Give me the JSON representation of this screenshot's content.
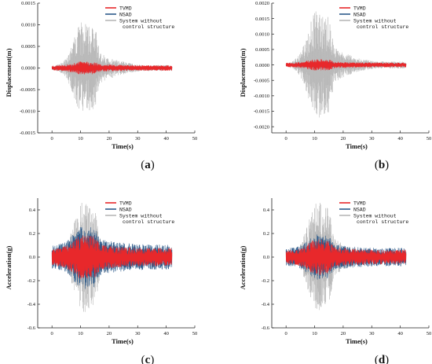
{
  "chart_data": [
    {
      "type": "line",
      "caption_letter": "a",
      "xlabel": "Time(s)",
      "ylabel": "Displacement(m)",
      "xlim": [
        -5,
        50
      ],
      "ylim": [
        -0.0015,
        0.0015
      ],
      "x_ticks": [
        0,
        10,
        20,
        30,
        40,
        50
      ],
      "y_ticks": [
        0.0015,
        0.001,
        0.0005,
        0.0,
        -0.0005,
        -0.001,
        -0.0015
      ],
      "y_tick_labels": [
        "0.0015",
        "0.0010",
        "0.0005",
        "0.0000",
        "-0.0005",
        "-0.0010",
        "-0.0015"
      ],
      "duration_s": 42,
      "series": [
        {
          "name": "TVMD",
          "color": "#e8282b",
          "peak_abs": 0.00016
        },
        {
          "name": "NSAD",
          "color": "#2c5a8a",
          "peak_abs": 0.0001
        },
        {
          "name": "System without control structure",
          "color": "#b8b8b8",
          "peak_abs": 0.00115
        }
      ],
      "legend_position": "top-right"
    },
    {
      "type": "line",
      "caption_letter": "b",
      "xlabel": "Time(s)",
      "ylabel": "Displacement(m)",
      "xlim": [
        -5,
        50
      ],
      "ylim": [
        -0.0022,
        0.002
      ],
      "x_ticks": [
        0,
        10,
        20,
        30,
        40,
        50
      ],
      "y_ticks": [
        0.002,
        0.0015,
        0.001,
        0.0005,
        0.0,
        -0.0005,
        -0.001,
        -0.0015,
        -0.002
      ],
      "y_tick_labels": [
        "0.0020",
        "0.0015",
        "0.0010",
        "0.0005",
        "0.0000",
        "-0.0005",
        "-0.0010",
        "-0.0015",
        "-0.0020"
      ],
      "duration_s": 42,
      "series": [
        {
          "name": "TVMD",
          "color": "#e8282b",
          "peak_abs": 0.0002
        },
        {
          "name": "NSAD",
          "color": "#2c5a8a",
          "peak_abs": 0.00012
        },
        {
          "name": "System without control structure",
          "color": "#b8b8b8",
          "peak_abs": 0.00185
        }
      ],
      "legend_position": "top-right"
    },
    {
      "type": "line",
      "caption_letter": "c",
      "xlabel": "Time(s)",
      "ylabel": "Acceleration(g)",
      "xlim": [
        -5,
        50
      ],
      "ylim": [
        -0.6,
        0.5
      ],
      "x_ticks": [
        0,
        10,
        20,
        30,
        40,
        50
      ],
      "y_ticks": [
        0.4,
        0.2,
        0.0,
        -0.2,
        -0.4,
        -0.6
      ],
      "y_tick_labels": [
        "0.4",
        "0.2",
        "0.0",
        "-0.2",
        "-0.4",
        "-0.6"
      ],
      "duration_s": 42,
      "series": [
        {
          "name": "TVMD",
          "color": "#e8282b",
          "peak_abs": 0.2
        },
        {
          "name": "NSAD",
          "color": "#2c5a8a",
          "peak_abs": 0.28
        },
        {
          "name": "System without control structure",
          "color": "#b8b8b8",
          "peak_abs": 0.5
        }
      ],
      "legend_position": "top-right"
    },
    {
      "type": "line",
      "caption_letter": "d",
      "xlabel": "Time(s)",
      "ylabel": "Acceleration(g)",
      "xlim": [
        -5,
        50
      ],
      "ylim": [
        -0.6,
        0.5
      ],
      "x_ticks": [
        0,
        10,
        20,
        30,
        40,
        50
      ],
      "y_ticks": [
        0.4,
        0.2,
        0.0,
        -0.2,
        -0.4,
        -0.6
      ],
      "y_tick_labels": [
        "0.4",
        "0.2",
        "0.0",
        "-0.2",
        "-0.4",
        "-0.6"
      ],
      "duration_s": 42,
      "series": [
        {
          "name": "TVMD",
          "color": "#e8282b",
          "peak_abs": 0.16
        },
        {
          "name": "NSAD",
          "color": "#2c5a8a",
          "peak_abs": 0.2
        },
        {
          "name": "System without control structure",
          "color": "#b8b8b8",
          "peak_abs": 0.5
        }
      ],
      "legend_position": "top-right"
    }
  ]
}
